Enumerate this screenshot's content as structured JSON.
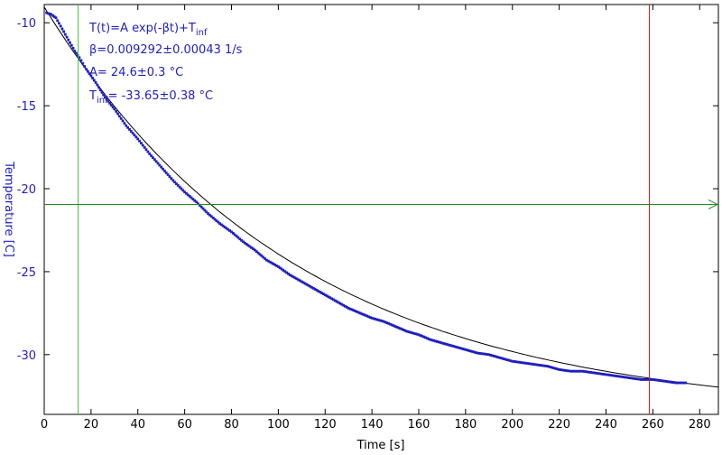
{
  "chart_data": {
    "type": "scatter",
    "xlabel": "Time [s]",
    "ylabel": "Temperature [C]",
    "xlim": [
      0,
      288
    ],
    "ylim": [
      -33.6,
      -8.9
    ],
    "xticks": [
      0,
      20,
      40,
      60,
      80,
      100,
      120,
      140,
      160,
      180,
      200,
      220,
      240,
      260,
      280
    ],
    "yticks": [
      -10,
      -15,
      -20,
      -25,
      -30
    ],
    "grid": false,
    "colors": {
      "data": "#1f1fbf",
      "fit": "#000000",
      "cursor_left": "#33cc33",
      "cursor_right": "#cc2222",
      "level_line": "#228b22",
      "axis_text": "#1f1fbf"
    },
    "annotation": {
      "formula_main": "T(t)=A exp(-βt)+T",
      "formula_sub": "inf",
      "beta": "β=0.009292±0.00043 1/s",
      "amplitude": "A= 24.6±0.3 °C",
      "tinf_main": "T",
      "tinf_sub": "inf",
      "tinf_value": "= -33.65±0.38 °C"
    },
    "fit": {
      "A": 24.6,
      "beta": 0.009292,
      "T_inf": -33.65,
      "x_range": [
        0,
        288
      ]
    },
    "series": [
      {
        "values_x": [
          1,
          3,
          5,
          7,
          9,
          11,
          13,
          15,
          18,
          22,
          26,
          30,
          35,
          40,
          45,
          50,
          55,
          60,
          65,
          70,
          75,
          80,
          85,
          90,
          95,
          100,
          105,
          110,
          115,
          120,
          125,
          130,
          135,
          140,
          145,
          150,
          155,
          160,
          165,
          170,
          175,
          180,
          185,
          190,
          195,
          200,
          205,
          210,
          215,
          220,
          225,
          230,
          235,
          240,
          245,
          250,
          255,
          260,
          265,
          270,
          274
        ],
        "values_y": [
          -9.4,
          -9.5,
          -9.7,
          -10.2,
          -10.7,
          -11.2,
          -11.7,
          -12.1,
          -12.8,
          -13.6,
          -14.5,
          -15.2,
          -16.2,
          -17.0,
          -17.9,
          -18.7,
          -19.5,
          -20.2,
          -20.8,
          -21.5,
          -22.1,
          -22.6,
          -23.2,
          -23.7,
          -24.3,
          -24.7,
          -25.2,
          -25.6,
          -26.0,
          -26.4,
          -26.8,
          -27.2,
          -27.5,
          -27.8,
          -28.0,
          -28.3,
          -28.6,
          -28.8,
          -29.1,
          -29.3,
          -29.5,
          -29.7,
          -29.9,
          -30.0,
          -30.2,
          -30.4,
          -30.5,
          -30.6,
          -30.7,
          -30.9,
          -31.0,
          -31.0,
          -31.1,
          -31.2,
          -31.3,
          -31.4,
          -31.5,
          -31.5,
          -31.6,
          -31.7,
          -31.7
        ]
      }
    ],
    "cursors": {
      "left_x": 14.5,
      "right_x": 258.5,
      "level_y": -20.95
    }
  }
}
